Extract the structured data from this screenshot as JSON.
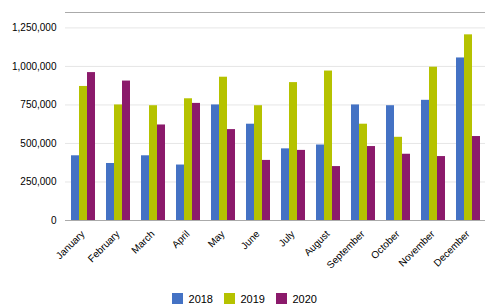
{
  "chart_data": {
    "type": "bar",
    "categories": [
      "January",
      "February",
      "March",
      "April",
      "May",
      "June",
      "July",
      "August",
      "September",
      "October",
      "November",
      "December"
    ],
    "series": [
      {
        "name": "2018",
        "color": "#4472c4",
        "values": [
          420000,
          370000,
          420000,
          360000,
          750000,
          625000,
          465000,
          490000,
          750000,
          745000,
          780000,
          1055000
        ]
      },
      {
        "name": "2019",
        "color": "#b5c200",
        "values": [
          870000,
          750000,
          745000,
          790000,
          930000,
          745000,
          895000,
          970000,
          625000,
          540000,
          995000,
          1205000
        ]
      },
      {
        "name": "2020",
        "color": "#8b1a6b",
        "values": [
          960000,
          905000,
          620000,
          760000,
          590000,
          390000,
          455000,
          350000,
          480000,
          430000,
          415000,
          545000
        ]
      }
    ],
    "ylim": [
      0,
      1350000
    ],
    "yticks": [
      0,
      {
        "value": 250000,
        "label": "250,000"
      },
      {
        "value": 500000,
        "label": "500,000"
      },
      {
        "value": 750000,
        "label": "750,000"
      },
      {
        "value": 1000000,
        "label": "1,000,000"
      },
      {
        "value": 1250000,
        "label": "1,250,000"
      }
    ],
    "grid": true,
    "legend": "bottom"
  }
}
